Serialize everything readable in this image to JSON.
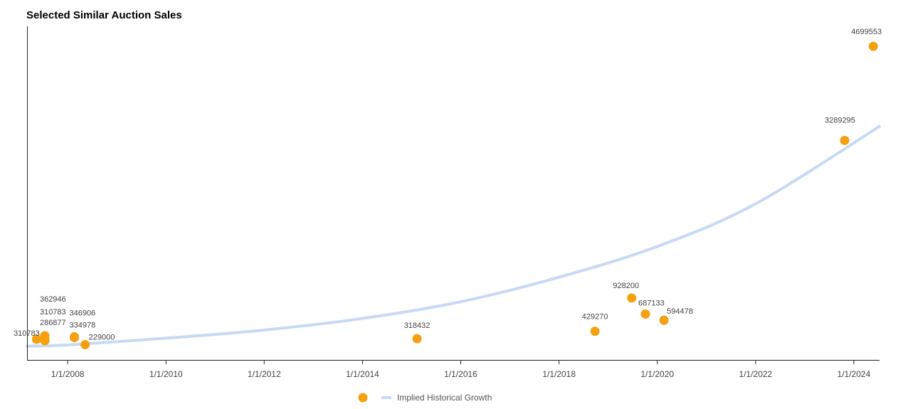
{
  "chart_data": {
    "type": "scatter",
    "title": "Selected Similar Auction Sales",
    "xlabel": "",
    "ylabel": "",
    "x_tick_labels": [
      "1/1/2008",
      "1/1/2010",
      "1/1/2012",
      "1/1/2014",
      "1/1/2016",
      "1/1/2018",
      "1/1/2020",
      "1/1/2022",
      "1/1/2024"
    ],
    "xlim": [
      "2007-03-05",
      "2024-07-10"
    ],
    "ylim": [
      0,
      5000000
    ],
    "grid": false,
    "legend_placement": "bottom-center",
    "colors": {
      "points": "#F5A00F",
      "trend": "#C6D9F5"
    },
    "series": [
      {
        "name": "",
        "type": "scatter",
        "points": [
          {
            "x": "2007-05-15",
            "y": 310783,
            "label": "310783"
          },
          {
            "x": "2007-07-15",
            "y": 362946,
            "label": "362946"
          },
          {
            "x": "2007-07-15",
            "y": 310783,
            "label": "310783"
          },
          {
            "x": "2007-07-15",
            "y": 286877,
            "label": "286877"
          },
          {
            "x": "2008-02-20",
            "y": 346906,
            "label": "346906"
          },
          {
            "x": "2008-02-20",
            "y": 334978,
            "label": "334978"
          },
          {
            "x": "2008-05-10",
            "y": 229000,
            "label": "229000"
          },
          {
            "x": "2015-02-10",
            "y": 318432,
            "label": "318432"
          },
          {
            "x": "2018-09-25",
            "y": 429270,
            "label": "429270"
          },
          {
            "x": "2019-06-25",
            "y": 928200,
            "label": "928200"
          },
          {
            "x": "2019-10-05",
            "y": 687133,
            "label": "687133"
          },
          {
            "x": "2020-02-20",
            "y": 594478,
            "label": "594478"
          },
          {
            "x": "2023-10-25",
            "y": 3289295,
            "label": "3289295"
          },
          {
            "x": "2024-05-25",
            "y": 4699553,
            "label": "4699553"
          }
        ]
      },
      {
        "name": "Implied Historical Growth",
        "type": "line",
        "points": [
          {
            "x": "2007-03-05",
            "y": 206000
          },
          {
            "x": "2008-01-01",
            "y": 224000
          },
          {
            "x": "2010-01-01",
            "y": 326000
          },
          {
            "x": "2012-01-01",
            "y": 448000
          },
          {
            "x": "2014-01-01",
            "y": 622000
          },
          {
            "x": "2016-01-01",
            "y": 872000
          },
          {
            "x": "2018-01-01",
            "y": 1240000
          },
          {
            "x": "2020-01-01",
            "y": 1700000
          },
          {
            "x": "2022-01-01",
            "y": 2340000
          },
          {
            "x": "2024-07-10",
            "y": 3500000
          }
        ]
      }
    ]
  }
}
